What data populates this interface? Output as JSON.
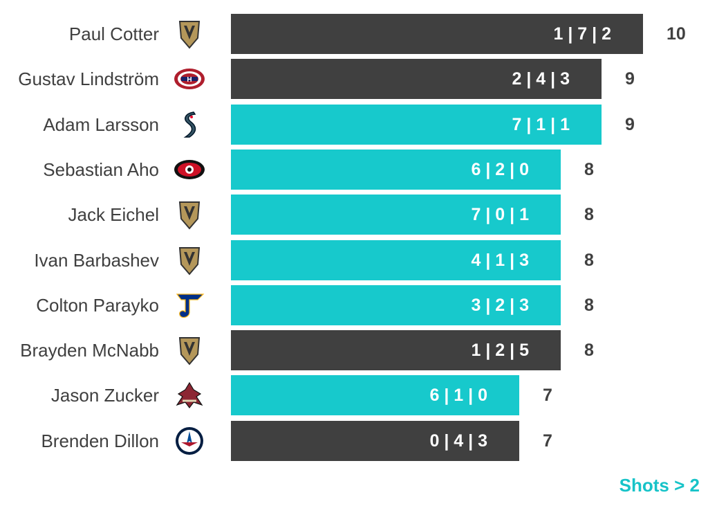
{
  "chart_data": {
    "type": "bar",
    "orientation": "horizontal",
    "categories": [
      "Paul Cotter",
      "Gustav Lindström",
      "Adam Larsson",
      "Sebastian Aho",
      "Jack Eichel",
      "Ivan Barbashev",
      "Colton Parayko",
      "Brayden McNabb",
      "Jason Zucker",
      "Brenden Dillon"
    ],
    "values": [
      10,
      9,
      9,
      8,
      8,
      8,
      8,
      8,
      7,
      7
    ],
    "bar_labels": [
      "1 | 7 | 2",
      "2 | 4 | 3",
      "7 | 1 | 1",
      "6 | 2 | 0",
      "7 | 0 | 1",
      "4 | 1 | 3",
      "3 | 2 | 3",
      "1 | 2 | 5",
      "6 | 1 | 0",
      "0 | 4 | 3"
    ],
    "highlight": [
      false,
      false,
      true,
      true,
      true,
      true,
      true,
      false,
      true,
      false
    ],
    "team_logos": [
      "vegas-golden-knights-logo",
      "montreal-canadiens-logo",
      "seattle-kraken-logo",
      "carolina-hurricanes-logo",
      "vegas-golden-knights-logo",
      "vegas-golden-knights-logo",
      "st-louis-blues-logo",
      "vegas-golden-knights-logo",
      "arizona-coyotes-logo",
      "winnipeg-jets-logo"
    ],
    "xlim": [
      0,
      10
    ],
    "grid": false,
    "colors": {
      "default": "#404040",
      "highlight": "#17c9cc"
    },
    "annotation": "Shots > 2"
  }
}
